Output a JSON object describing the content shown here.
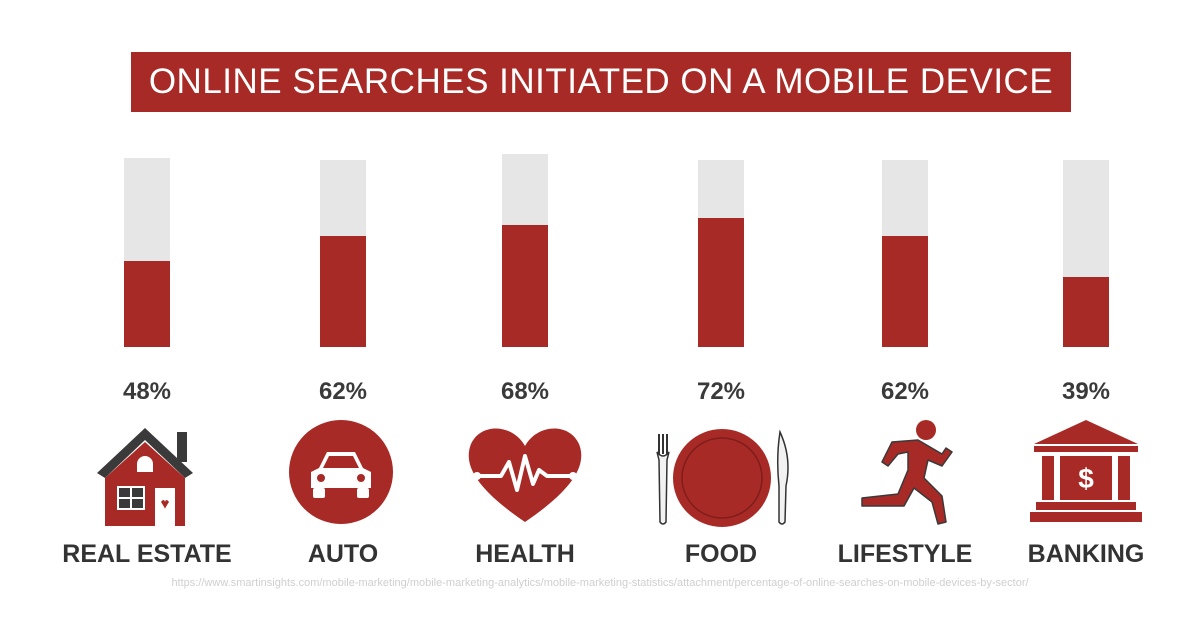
{
  "title": "ONLINE SEARCHES INITIATED ON A MOBILE DEVICE",
  "source": "https://www.smartinsights.com/mobile-marketing/mobile-marketing-analytics/mobile-marketing-statistics/attachment/percentage-of-online-searches-on-mobile-devices-by-sector/",
  "colors": {
    "accent": "#a82a26",
    "track": "#e6e6e7",
    "text": "#333333"
  },
  "chart_data": {
    "type": "bar",
    "title": "ONLINE SEARCHES INITIATED ON A MOBILE DEVICE",
    "categories": [
      "REAL ESTATE",
      "AUTO",
      "HEALTH",
      "FOOD",
      "LIFESTYLE",
      "BANKING"
    ],
    "values": [
      48,
      62,
      68,
      72,
      62,
      39
    ],
    "value_labels": [
      "48%",
      "62%",
      "68%",
      "72%",
      "62%",
      "39%"
    ],
    "icons": [
      "house-icon",
      "car-icon",
      "heart-pulse-icon",
      "plate-cutlery-icon",
      "runner-icon",
      "bank-icon"
    ],
    "ylim": [
      0,
      100
    ],
    "grid": false,
    "legend": "none"
  }
}
